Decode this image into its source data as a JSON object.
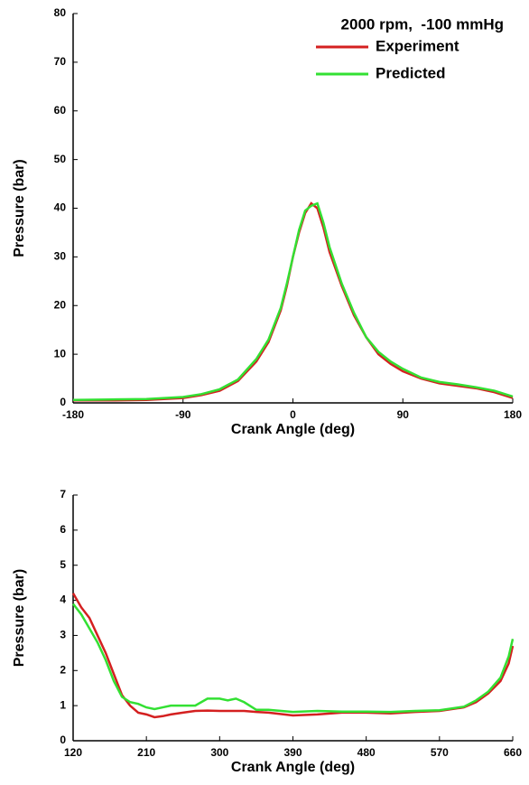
{
  "chart_data": [
    {
      "type": "line",
      "annotation": "2000 rpm,  -100 mmHg",
      "ylabel": "Pressure (bar)",
      "xlabel": "Crank Angle (deg)",
      "legend": "upper right",
      "x": [
        -180,
        -150,
        -120,
        -90,
        -75,
        -60,
        -45,
        -30,
        -20,
        -10,
        -5,
        0,
        5,
        10,
        15,
        20,
        25,
        30,
        40,
        50,
        60,
        70,
        80,
        90,
        105,
        120,
        135,
        150,
        165,
        180
      ],
      "series": [
        {
          "name": "Experiment",
          "color": "#d42020",
          "values": [
            0.5,
            0.5,
            0.6,
            1.0,
            1.6,
            2.5,
            4.5,
            8.5,
            12.5,
            19,
            24,
            30,
            35,
            39,
            41,
            40,
            36,
            31,
            24,
            18,
            13.5,
            10,
            8,
            6.5,
            5,
            4,
            3.5,
            3,
            2.2,
            1
          ]
        },
        {
          "name": "Predicted",
          "color": "#33e033",
          "values": [
            0.6,
            0.7,
            0.8,
            1.2,
            1.8,
            2.8,
            4.8,
            9,
            13,
            19.5,
            24.5,
            30,
            35.5,
            39.5,
            40.5,
            41,
            37,
            32,
            24.5,
            18.5,
            13.5,
            10.5,
            8.5,
            7,
            5.2,
            4.3,
            3.8,
            3.2,
            2.5,
            1.3
          ]
        }
      ],
      "xlim": [
        -180,
        180
      ],
      "xticks": [
        -180,
        -90,
        0,
        90,
        180
      ],
      "ylim": [
        0,
        80
      ],
      "yticks": [
        0,
        10,
        20,
        30,
        40,
        50,
        60,
        70,
        80
      ]
    },
    {
      "type": "line",
      "ylabel": "Pressure (bar)",
      "xlabel": "Crank Angle (deg)",
      "x": [
        120,
        130,
        140,
        150,
        160,
        170,
        180,
        190,
        200,
        210,
        220,
        230,
        240,
        255,
        270,
        285,
        300,
        310,
        320,
        330,
        345,
        360,
        390,
        420,
        450,
        480,
        510,
        540,
        570,
        600,
        615,
        630,
        645,
        655,
        660
      ],
      "series": [
        {
          "color": "#d42020",
          "values": [
            4.2,
            3.8,
            3.5,
            3.0,
            2.5,
            1.9,
            1.3,
            1.0,
            0.8,
            0.75,
            0.67,
            0.7,
            0.75,
            0.8,
            0.85,
            0.86,
            0.85,
            0.85,
            0.85,
            0.85,
            0.82,
            0.8,
            0.72,
            0.75,
            0.8,
            0.8,
            0.78,
            0.82,
            0.85,
            0.95,
            1.1,
            1.35,
            1.7,
            2.2,
            2.7
          ]
        },
        {
          "color": "#33e033",
          "values": [
            3.9,
            3.6,
            3.2,
            2.8,
            2.3,
            1.7,
            1.25,
            1.1,
            1.05,
            0.95,
            0.9,
            0.95,
            1.0,
            1.0,
            1.0,
            1.2,
            1.2,
            1.15,
            1.2,
            1.1,
            0.88,
            0.88,
            0.82,
            0.85,
            0.83,
            0.83,
            0.82,
            0.85,
            0.87,
            0.97,
            1.15,
            1.4,
            1.8,
            2.4,
            2.9
          ]
        }
      ],
      "xlim": [
        120,
        660
      ],
      "xticks": [
        120,
        210,
        300,
        390,
        480,
        570,
        660
      ],
      "ylim": [
        0,
        7
      ],
      "yticks": [
        0,
        1,
        2,
        3,
        4,
        5,
        6,
        7
      ]
    }
  ]
}
